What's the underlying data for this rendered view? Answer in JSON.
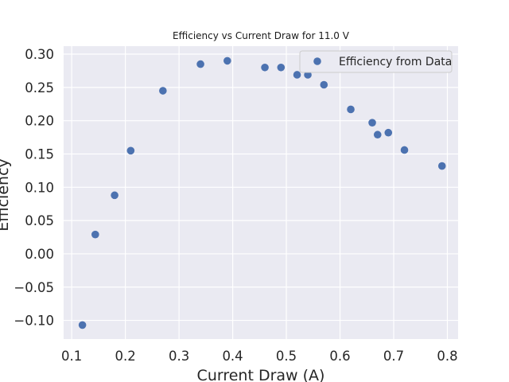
{
  "chart_data": {
    "type": "scatter",
    "title": "Efficiency vs Current Draw for 11.0 V",
    "xlabel": "Current Draw (A)",
    "ylabel": "Efficiency",
    "xlim": [
      0.085,
      0.82
    ],
    "ylim": [
      -0.128,
      0.312
    ],
    "xticks": [
      0.1,
      0.2,
      0.3,
      0.4,
      0.5,
      0.6,
      0.7,
      0.8
    ],
    "xtick_labels": [
      "0.1",
      "0.2",
      "0.3",
      "0.4",
      "0.5",
      "0.6",
      "0.7",
      "0.8"
    ],
    "yticks": [
      -0.1,
      -0.05,
      0.0,
      0.05,
      0.1,
      0.15,
      0.2,
      0.25,
      0.3
    ],
    "ytick_labels": [
      "−0.10",
      "−0.05",
      "0.00",
      "0.05",
      "0.10",
      "0.15",
      "0.20",
      "0.25",
      "0.30"
    ],
    "grid": true,
    "legend_position": "top-right",
    "series": [
      {
        "name": "Efficiency from Data",
        "color": "#4c72b0",
        "points": [
          {
            "x": 0.12,
            "y": -0.107
          },
          {
            "x": 0.144,
            "y": 0.029
          },
          {
            "x": 0.18,
            "y": 0.088
          },
          {
            "x": 0.21,
            "y": 0.155
          },
          {
            "x": 0.27,
            "y": 0.245
          },
          {
            "x": 0.34,
            "y": 0.285
          },
          {
            "x": 0.39,
            "y": 0.29
          },
          {
            "x": 0.46,
            "y": 0.28
          },
          {
            "x": 0.49,
            "y": 0.28
          },
          {
            "x": 0.52,
            "y": 0.269
          },
          {
            "x": 0.54,
            "y": 0.269
          },
          {
            "x": 0.57,
            "y": 0.254
          },
          {
            "x": 0.62,
            "y": 0.217
          },
          {
            "x": 0.66,
            "y": 0.197
          },
          {
            "x": 0.67,
            "y": 0.179
          },
          {
            "x": 0.69,
            "y": 0.182
          },
          {
            "x": 0.72,
            "y": 0.156
          },
          {
            "x": 0.79,
            "y": 0.132
          }
        ]
      }
    ]
  }
}
